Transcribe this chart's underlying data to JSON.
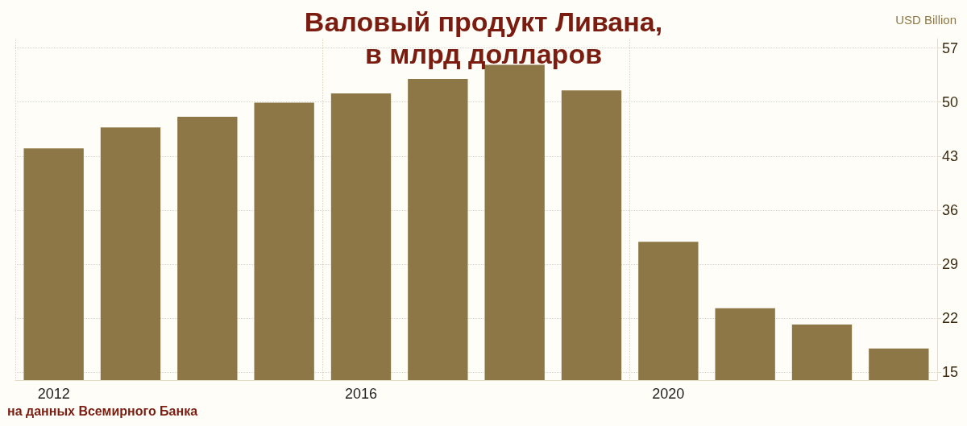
{
  "chart_data": {
    "type": "bar",
    "title": "Валовый продукт Ливана,\nв млрд долларов",
    "ylabel": "USD Billion",
    "categories": [
      "2012",
      null,
      null,
      null,
      "2016",
      null,
      null,
      null,
      "2020",
      null,
      null,
      null
    ],
    "values": [
      44.0,
      46.7,
      48.1,
      49.9,
      51.1,
      53.0,
      54.8,
      51.5,
      31.9,
      23.3,
      21.2,
      18.1
    ],
    "color": "#8e7747",
    "ylim": [
      14,
      58.2
    ],
    "yticks": [
      15,
      22,
      29,
      36,
      43,
      50,
      57
    ],
    "grid": true,
    "annotations": [
      "на данных Всемирного Банка"
    ]
  }
}
